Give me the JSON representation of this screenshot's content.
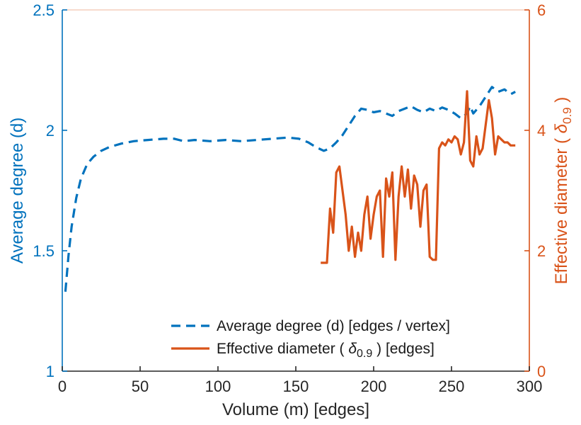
{
  "chart_data": {
    "type": "line",
    "title": "",
    "xlabel": "Volume (m) [edges]",
    "xlim": [
      0,
      300
    ],
    "x_ticks": [
      0,
      50,
      100,
      150,
      200,
      250,
      300
    ],
    "grid": false,
    "axis_tick_color": "#262626",
    "left_axis": {
      "label": "Average degree (d)",
      "color": "#0072BD",
      "lim": [
        1,
        2.5
      ],
      "ticks": [
        1,
        1.5,
        2,
        2.5
      ],
      "tick_labels": [
        "1",
        "1.5",
        "2",
        "2.5"
      ]
    },
    "right_axis": {
      "label_prefix": "Effective diameter (   ",
      "label_symbol": "δ",
      "label_sub": "0.9",
      "label_suffix": " )",
      "color": "#D95319",
      "lim": [
        0,
        6
      ],
      "ticks": [
        0,
        2,
        4,
        6
      ],
      "tick_labels": [
        "0",
        "2",
        "4",
        "6"
      ]
    },
    "series": [
      {
        "name": "Average degree (d) [edges / vertex]",
        "axis": "left",
        "style": "dashed",
        "color": "#0072BD",
        "x": [
          2,
          4,
          6,
          9,
          12,
          16,
          20,
          25,
          30,
          38,
          46,
          55,
          65,
          72,
          78,
          85,
          95,
          105,
          115,
          125,
          135,
          145,
          152,
          158,
          163,
          168,
          172,
          176,
          180,
          184,
          188,
          192,
          196,
          200,
          204,
          208,
          212,
          216,
          220,
          224,
          228,
          232,
          236,
          240,
          244,
          248,
          252,
          256,
          260,
          262,
          264,
          268,
          272,
          276,
          280,
          284,
          288,
          291
        ],
        "y": [
          1.33,
          1.48,
          1.6,
          1.72,
          1.8,
          1.86,
          1.89,
          1.915,
          1.93,
          1.945,
          1.955,
          1.96,
          1.965,
          1.965,
          1.955,
          1.96,
          1.955,
          1.96,
          1.955,
          1.96,
          1.965,
          1.97,
          1.965,
          1.95,
          1.93,
          1.915,
          1.925,
          1.95,
          1.98,
          2.02,
          2.06,
          2.09,
          2.085,
          2.075,
          2.08,
          2.07,
          2.06,
          2.08,
          2.09,
          2.1,
          2.085,
          2.075,
          2.09,
          2.08,
          2.095,
          2.085,
          2.07,
          2.05,
          2.07,
          2.1,
          2.07,
          2.1,
          2.14,
          2.18,
          2.16,
          2.17,
          2.15,
          2.16
        ]
      },
      {
        "name": "Effective diameter ( δ0.9 ) [edges]",
        "axis": "right",
        "style": "solid",
        "color": "#D95319",
        "x": [
          166,
          170,
          172,
          174,
          176,
          178,
          180,
          182,
          184,
          186,
          188,
          190,
          192,
          194,
          196,
          198,
          200,
          202,
          204,
          206,
          208,
          210,
          212,
          214,
          216,
          218,
          220,
          222,
          224,
          226,
          228,
          230,
          232,
          234,
          236,
          238,
          240,
          242,
          244,
          246,
          248,
          250,
          252,
          254,
          256,
          258,
          260,
          262,
          264,
          266,
          268,
          270,
          272,
          274,
          276,
          278,
          280,
          282,
          284,
          286,
          288,
          291
        ],
        "y": [
          1.8,
          1.8,
          2.7,
          2.3,
          3.3,
          3.4,
          3.0,
          2.6,
          2.0,
          2.4,
          1.9,
          2.3,
          2.0,
          2.6,
          2.9,
          2.2,
          2.6,
          2.9,
          3.0,
          1.9,
          3.2,
          2.9,
          3.3,
          1.85,
          2.9,
          3.4,
          2.9,
          3.35,
          2.7,
          3.25,
          3.1,
          2.4,
          3.0,
          3.1,
          1.9,
          1.85,
          1.85,
          3.7,
          3.8,
          3.75,
          3.85,
          3.8,
          3.9,
          3.85,
          3.6,
          3.8,
          4.65,
          3.5,
          3.4,
          3.9,
          3.6,
          3.7,
          4.1,
          4.5,
          4.2,
          3.6,
          3.9,
          3.85,
          3.8,
          3.8,
          3.75,
          3.75
        ]
      }
    ],
    "legend": {
      "position": "south-center-inside",
      "border": false,
      "items": [
        {
          "label": "Average degree (d) [edges / vertex]",
          "swatch": "dashed-blue-line"
        },
        {
          "label_prefix": "Effective diameter (   ",
          "label_symbol": "δ",
          "label_sub": "0.9",
          "label_suffix": " ) [edges]",
          "swatch": "solid-orange-line"
        }
      ]
    }
  }
}
